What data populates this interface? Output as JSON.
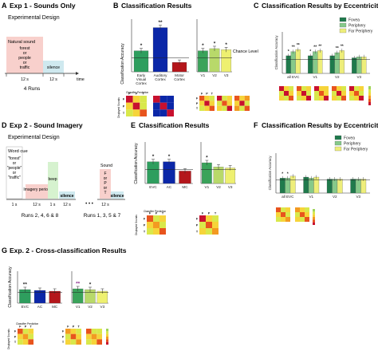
{
  "panels": {
    "A": {
      "letter": "A",
      "title": "Exp 1 - Sounds Only",
      "subtitle": "Experimental Design",
      "box_title": "Natural sound",
      "box_lines": [
        "forest",
        "or",
        "people",
        "or",
        "traffic"
      ],
      "silence": "silence",
      "durations": [
        "12 s",
        "12 s"
      ],
      "time": "time",
      "runs": "4 Runs"
    },
    "B": {
      "letter": "B",
      "title": "Classification Results",
      "ylabel": "Classification Accuracy",
      "left_categories": [
        "Early Visual Cortex",
        "Auditory Cortex",
        "Motor Cortex"
      ],
      "right_categories": [
        "V1",
        "V2",
        "V3"
      ],
      "chance": "Chance Level",
      "legend_title": "Classifier Prediction",
      "matrix_ylabel": "Displayed Sounds",
      "fpt": [
        "F",
        "P",
        "T"
      ]
    },
    "C": {
      "letter": "C",
      "title": "Classification Results by Eccentricity",
      "legend": [
        "Fovea",
        "Periphery",
        "Far Periphery"
      ],
      "categories": [
        "all EVC",
        "V1",
        "V2",
        "V3"
      ]
    },
    "D": {
      "letter": "D",
      "title": "Exp 2 - Sound Imagery",
      "subtitle": "Experimental Design",
      "word_cue": "Word cue",
      "cue_lines": [
        "\"forest\"",
        "or",
        "\"people\"",
        "or",
        "\"traffic\""
      ],
      "imagery": "Imagery period",
      "beep": "beep",
      "silence": "silence",
      "sound_lines": [
        "Sound",
        "F",
        "or",
        "P",
        "or",
        "T"
      ],
      "durations": [
        "1 s",
        "12 s",
        "1 s",
        "12 s",
        "12 s"
      ],
      "ellipsis": "• • •",
      "runs_a": "Runs 2, 4, 6 & 8",
      "runs_b": "Runs 1, 3, 5 & 7"
    },
    "E": {
      "letter": "E",
      "title": "Classification Results",
      "left_categories": [
        "EVC",
        "AC",
        "MC"
      ],
      "right_categories": [
        "V1",
        "V2",
        "V3"
      ]
    },
    "F": {
      "letter": "F",
      "title": "Classification Results by Eccentricity",
      "legend": [
        "Fovea",
        "Periphery",
        "Far Periphery"
      ],
      "categories": [
        "all EVC",
        "V1",
        "V2",
        "V3"
      ]
    },
    "G": {
      "letter": "G",
      "title": "Exp. 2 - Cross-classification Results",
      "left_categories": [
        "EVC",
        "AC",
        "MC"
      ],
      "right_categories": [
        "V1",
        "V2",
        "V3"
      ]
    }
  },
  "colors": {
    "evc": "#2e9e5e",
    "ac": "#0b27a8",
    "mc": "#b4161b",
    "v1": "#3aa35a",
    "v2": "#b8d96a",
    "v3": "#eef070",
    "fovea": "#1f7a4c",
    "periphery": "#86c98a",
    "far": "#eeee7a",
    "sound_box": "#f8d0cc",
    "silence_box": "#cfe9ef",
    "imagery_box": "#f8d0cc",
    "beep_box": "#d6f2cf"
  },
  "chart_data": [
    {
      "id": "B-left",
      "type": "bar",
      "categories": [
        "Early Visual Cortex",
        "Auditory Cortex",
        "Motor Cortex"
      ],
      "values": [
        0.4,
        0.62,
        0.29
      ],
      "significance": [
        "*",
        "**",
        ""
      ],
      "ylim": [
        0.2,
        0.7
      ],
      "chance": 0.333
    },
    {
      "id": "B-right",
      "type": "bar",
      "categories": [
        "V1",
        "V2",
        "V3"
      ],
      "values": [
        0.4,
        0.42,
        0.41
      ],
      "significance": [
        "*",
        "*",
        "*"
      ],
      "ylim": [
        0.2,
        0.7
      ],
      "chance": 0.333
    },
    {
      "id": "C",
      "type": "bar",
      "categories": [
        "all EVC",
        "V1",
        "V2",
        "V3"
      ],
      "series": [
        {
          "name": "Fovea",
          "values": [
            0.37,
            0.37,
            0.37,
            0.35
          ]
        },
        {
          "name": "Periphery",
          "values": [
            0.41,
            0.41,
            0.4,
            0.36
          ]
        },
        {
          "name": "Far Periphery",
          "values": [
            0.43,
            0.42,
            0.42,
            0.36
          ]
        }
      ],
      "significance": [
        [
          "*",
          "**",
          "**"
        ],
        [
          "*",
          "**",
          "**"
        ],
        [
          "",
          "**",
          "**"
        ],
        [
          "",
          "",
          ""
        ]
      ],
      "ylim": [
        0.2,
        0.6
      ],
      "chance": 0.333
    },
    {
      "id": "E-left",
      "type": "bar",
      "categories": [
        "EVC",
        "AC",
        "MC"
      ],
      "values": [
        0.41,
        0.41,
        0.32
      ],
      "significance": [
        "*",
        "*",
        ""
      ],
      "ylim": [
        0.2,
        0.6
      ],
      "chance": 0.333
    },
    {
      "id": "E-right",
      "type": "bar",
      "categories": [
        "V1",
        "V2",
        "V3"
      ],
      "values": [
        0.4,
        0.36,
        0.35
      ],
      "significance": [
        "*",
        "",
        ""
      ],
      "ylim": [
        0.2,
        0.6
      ],
      "chance": 0.333
    },
    {
      "id": "F",
      "type": "bar",
      "categories": [
        "all EVC",
        "V1",
        "V2",
        "V3"
      ],
      "series": [
        {
          "name": "Fovea",
          "values": [
            0.35,
            0.36,
            0.34,
            0.34
          ]
        },
        {
          "name": "Periphery",
          "values": [
            0.35,
            0.35,
            0.34,
            0.34
          ]
        },
        {
          "name": "Far Periphery",
          "values": [
            0.37,
            0.36,
            0.34,
            0.34
          ]
        }
      ],
      "significance": [
        [
          "*",
          "*",
          ""
        ],
        [
          "",
          "",
          ""
        ],
        [
          "",
          "",
          ""
        ],
        [
          "",
          "",
          ""
        ]
      ],
      "ylim": [
        0.2,
        0.6
      ],
      "chance": 0.333
    },
    {
      "id": "G-left",
      "type": "bar",
      "categories": [
        "EVC",
        "AC",
        "MC"
      ],
      "values": [
        0.37,
        0.36,
        0.35
      ],
      "significance": [
        "**",
        "",
        ""
      ],
      "ylim": [
        0.2,
        0.6
      ],
      "chance": 0.333
    },
    {
      "id": "G-right",
      "type": "bar",
      "categories": [
        "V1",
        "V2",
        "V3"
      ],
      "values": [
        0.38,
        0.37,
        0.35
      ],
      "significance": [
        "**",
        "*",
        ""
      ],
      "ylim": [
        0.2,
        0.6
      ],
      "chance": 0.333
    }
  ]
}
